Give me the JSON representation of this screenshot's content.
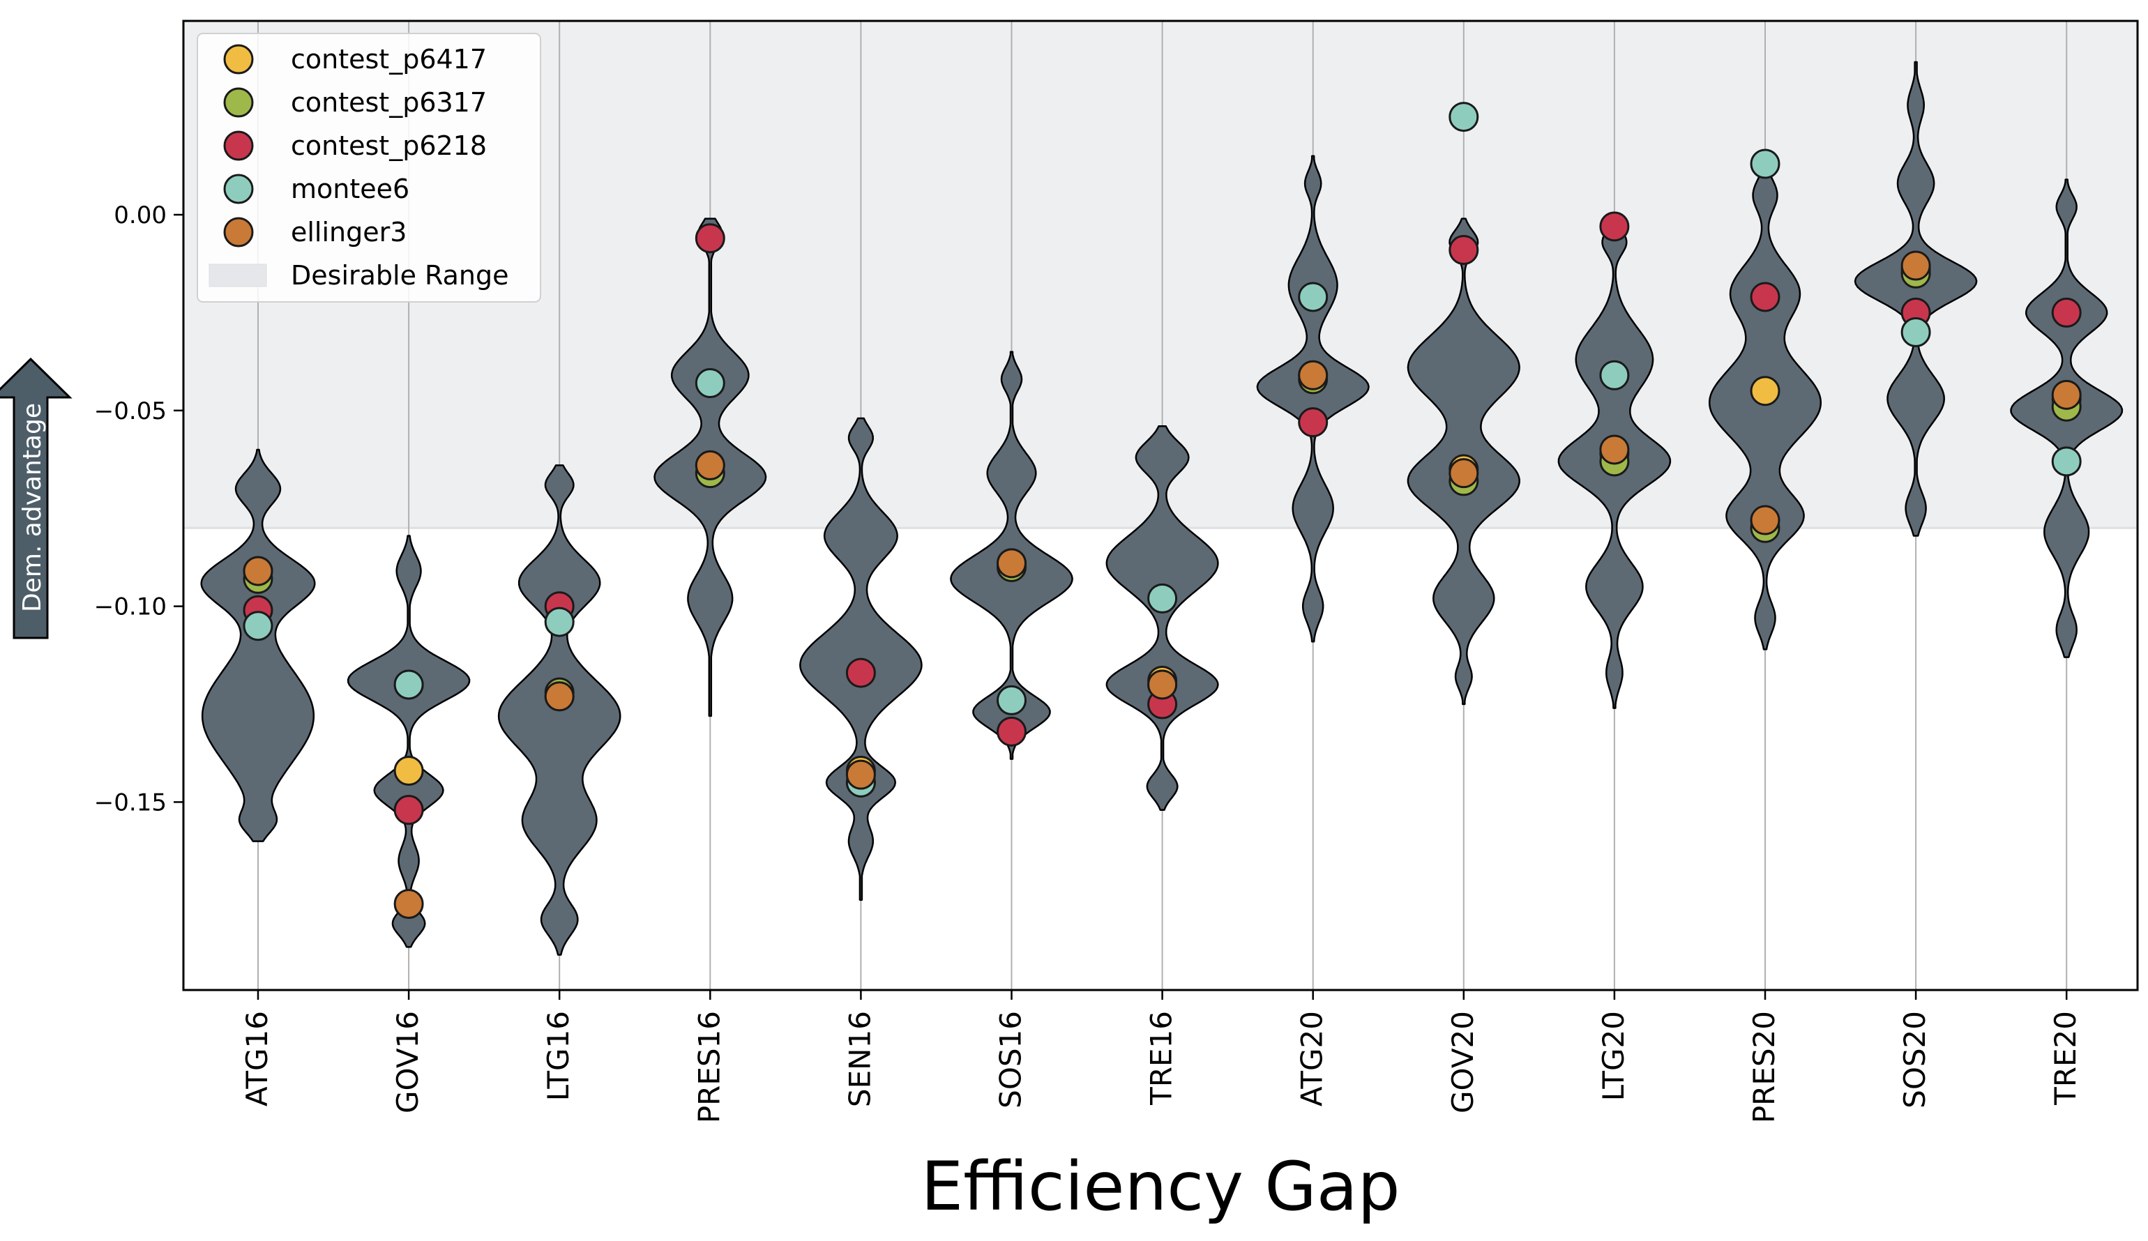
{
  "chart_data": {
    "type": "violin",
    "xlabel": "Efficiency Gap",
    "ylabel": "Dem. advantage",
    "ylim": [
      -0.198,
      0.0495
    ],
    "yticks": [
      0.0,
      -0.05,
      -0.1,
      -0.15
    ],
    "ytick_labels": [
      "0.00",
      "−0.05",
      "−0.10",
      "−0.15"
    ],
    "desirable_range": {
      "label": "Desirable Range",
      "from": -0.08,
      "to": 0.0495,
      "color": "#eeeff1"
    },
    "grid": "vertical",
    "legend_position": "top-left",
    "categories": [
      "ATG16",
      "GOV16",
      "LTG16",
      "PRES16",
      "SEN16",
      "SOS16",
      "TRE16",
      "ATG20",
      "GOV20",
      "LTG20",
      "PRES20",
      "SOS20",
      "TRE20"
    ],
    "violin_color": "#5d6a74",
    "violins": [
      {
        "range": [
          -0.16,
          -0.06
        ],
        "modes": [
          [
            -0.128,
            0.055,
            0.012
          ],
          [
            -0.094,
            0.055,
            0.006
          ],
          [
            -0.07,
            0.022,
            0.004
          ],
          [
            -0.155,
            0.014,
            0.003
          ]
        ]
      },
      {
        "range": [
          -0.187,
          -0.082
        ],
        "modes": [
          [
            -0.119,
            0.06,
            0.005
          ],
          [
            -0.147,
            0.034,
            0.004
          ],
          [
            -0.091,
            0.012,
            0.004
          ],
          [
            -0.181,
            0.016,
            0.003
          ],
          [
            -0.165,
            0.01,
            0.004
          ]
        ]
      },
      {
        "range": [
          -0.189,
          -0.064
        ],
        "modes": [
          [
            -0.128,
            0.06,
            0.009
          ],
          [
            -0.094,
            0.04,
            0.006
          ],
          [
            -0.155,
            0.036,
            0.007
          ],
          [
            -0.069,
            0.014,
            0.003
          ],
          [
            -0.18,
            0.018,
            0.004
          ]
        ]
      },
      {
        "range": [
          -0.128,
          -0.001
        ],
        "modes": [
          [
            -0.067,
            0.055,
            0.006
          ],
          [
            -0.041,
            0.038,
            0.006
          ],
          [
            -0.098,
            0.022,
            0.006
          ],
          [
            -0.005,
            0.012,
            0.003
          ]
        ]
      },
      {
        "range": [
          -0.175,
          -0.052
        ],
        "modes": [
          [
            -0.115,
            0.06,
            0.008
          ],
          [
            -0.145,
            0.034,
            0.004
          ],
          [
            -0.082,
            0.036,
            0.006
          ],
          [
            -0.057,
            0.012,
            0.003
          ],
          [
            -0.16,
            0.012,
            0.004
          ]
        ]
      },
      {
        "range": [
          -0.139,
          -0.035
        ],
        "modes": [
          [
            -0.093,
            0.06,
            0.006
          ],
          [
            -0.127,
            0.038,
            0.004
          ],
          [
            -0.066,
            0.024,
            0.005
          ],
          [
            -0.042,
            0.01,
            0.003
          ]
        ]
      },
      {
        "range": [
          -0.152,
          -0.054
        ],
        "modes": [
          [
            -0.089,
            0.055,
            0.007
          ],
          [
            -0.12,
            0.055,
            0.005
          ],
          [
            -0.062,
            0.026,
            0.004
          ],
          [
            -0.146,
            0.015,
            0.003
          ]
        ]
      },
      {
        "range": [
          -0.109,
          0.015
        ],
        "modes": [
          [
            -0.044,
            0.055,
            0.005
          ],
          [
            -0.018,
            0.024,
            0.007
          ],
          [
            -0.075,
            0.02,
            0.006
          ],
          [
            0.008,
            0.008,
            0.003
          ],
          [
            -0.1,
            0.01,
            0.004
          ]
        ]
      },
      {
        "range": [
          -0.125,
          -0.001
        ],
        "modes": [
          [
            -0.039,
            0.055,
            0.008
          ],
          [
            -0.068,
            0.055,
            0.007
          ],
          [
            -0.098,
            0.03,
            0.006
          ],
          [
            -0.007,
            0.014,
            0.003
          ],
          [
            -0.118,
            0.008,
            0.003
          ]
        ]
      },
      {
        "range": [
          -0.126,
          -0.002
        ],
        "modes": [
          [
            -0.063,
            0.055,
            0.006
          ],
          [
            -0.037,
            0.038,
            0.008
          ],
          [
            -0.095,
            0.028,
            0.006
          ],
          [
            -0.007,
            0.012,
            0.003
          ],
          [
            -0.117,
            0.008,
            0.004
          ]
        ]
      },
      {
        "range": [
          -0.111,
          0.014
        ],
        "modes": [
          [
            -0.048,
            0.055,
            0.009
          ],
          [
            -0.077,
            0.038,
            0.006
          ],
          [
            -0.02,
            0.034,
            0.007
          ],
          [
            0.005,
            0.012,
            0.004
          ],
          [
            -0.103,
            0.01,
            0.004
          ]
        ]
      },
      {
        "range": [
          -0.082,
          0.039
        ],
        "modes": [
          [
            -0.017,
            0.06,
            0.005
          ],
          [
            -0.047,
            0.028,
            0.006
          ],
          [
            0.008,
            0.018,
            0.005
          ],
          [
            -0.075,
            0.01,
            0.004
          ],
          [
            0.028,
            0.008,
            0.004
          ]
        ]
      },
      {
        "range": [
          -0.113,
          0.009
        ],
        "modes": [
          [
            -0.05,
            0.055,
            0.005
          ],
          [
            -0.025,
            0.04,
            0.005
          ],
          [
            -0.081,
            0.022,
            0.006
          ],
          [
            0.002,
            0.01,
            0.003
          ],
          [
            -0.106,
            0.01,
            0.004
          ]
        ]
      }
    ],
    "series": [
      {
        "name": "contest_p6417",
        "color": "#f0bc42",
        "values": [
          -0.091,
          -0.142,
          -0.123,
          -0.064,
          -0.142,
          -0.089,
          -0.119,
          -0.041,
          -0.065,
          -0.061,
          -0.045,
          -0.014,
          -0.047
        ]
      },
      {
        "name": "contest_p6317",
        "color": "#9fb84a",
        "values": [
          -0.093,
          -0.12,
          -0.122,
          -0.066,
          -0.145,
          -0.09,
          -0.12,
          -0.042,
          -0.068,
          -0.063,
          -0.08,
          -0.015,
          -0.049
        ]
      },
      {
        "name": "contest_p6218",
        "color": "#c8364e",
        "values": [
          -0.101,
          -0.152,
          -0.1,
          -0.006,
          -0.117,
          -0.132,
          -0.125,
          -0.053,
          -0.009,
          -0.003,
          -0.021,
          -0.025,
          -0.025
        ]
      },
      {
        "name": "montee6",
        "color": "#8ecdbe",
        "values": [
          -0.105,
          -0.12,
          -0.104,
          -0.043,
          -0.145,
          -0.124,
          -0.098,
          -0.021,
          0.025,
          -0.041,
          0.013,
          -0.03,
          -0.063
        ]
      },
      {
        "name": "ellinger3",
        "color": "#c97a36",
        "values": [
          -0.091,
          -0.176,
          -0.123,
          -0.064,
          -0.143,
          -0.089,
          -0.12,
          -0.041,
          -0.066,
          -0.06,
          -0.078,
          -0.013,
          -0.046
        ]
      }
    ]
  }
}
